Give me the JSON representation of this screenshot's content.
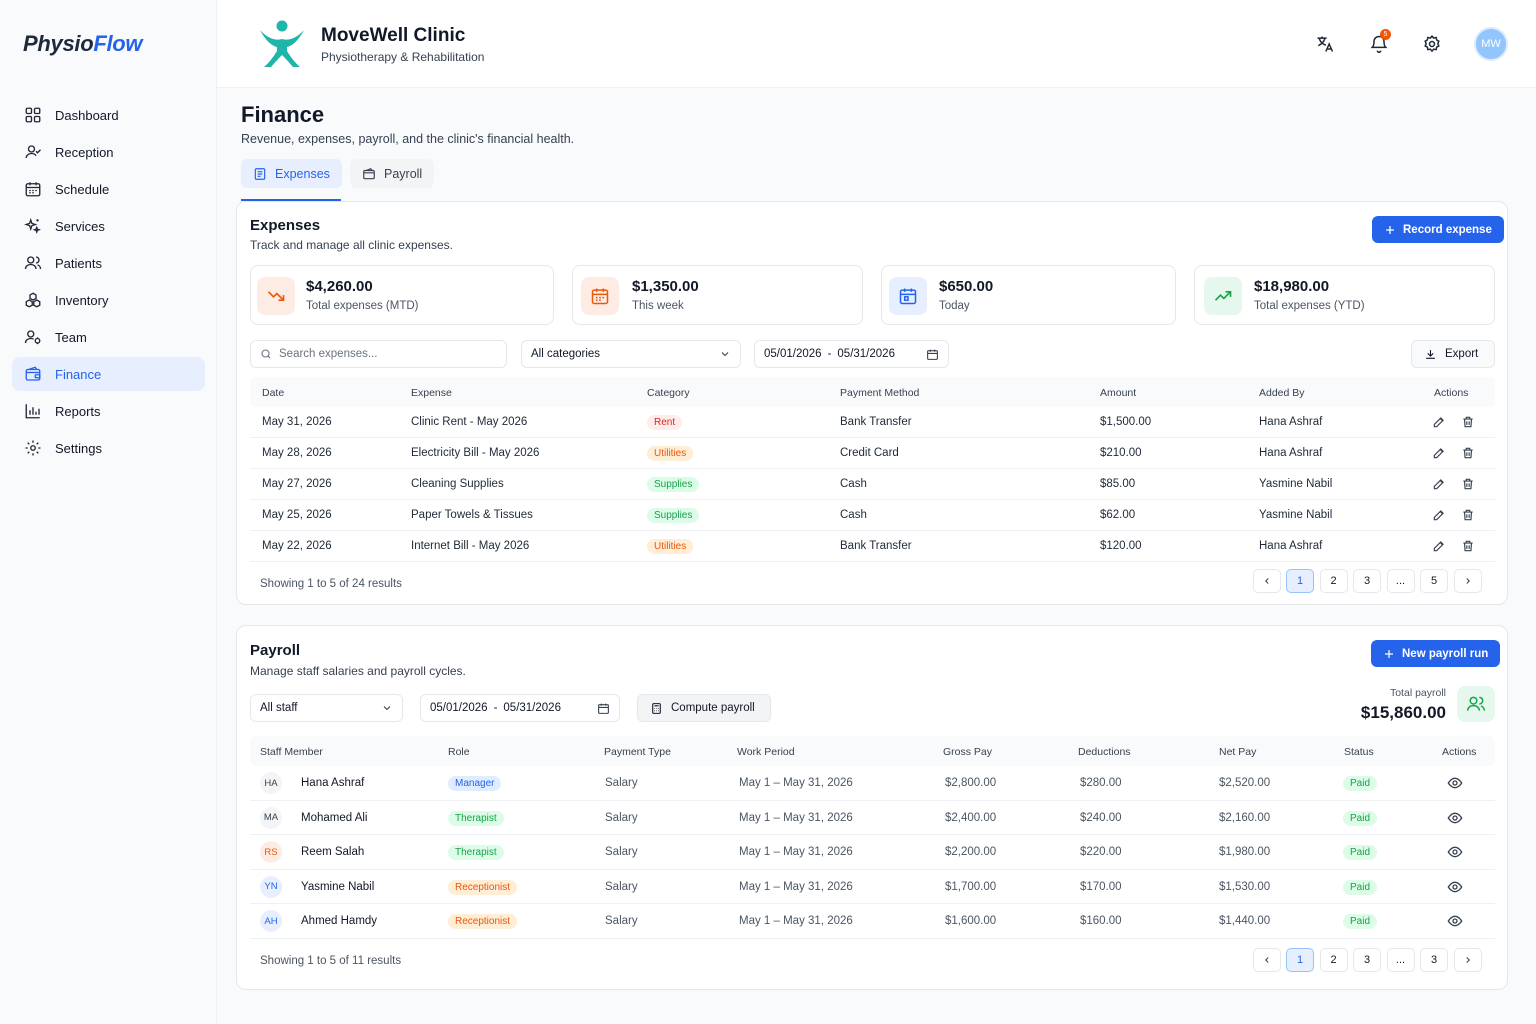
{
  "brand": {
    "part1": "Physio",
    "part2": "Flow"
  },
  "nav": [
    {
      "label": "Dashboard",
      "icon": "dashboard-icon"
    },
    {
      "label": "Reception",
      "icon": "reception-icon"
    },
    {
      "label": "Schedule",
      "icon": "calendar-icon"
    },
    {
      "label": "Services",
      "icon": "sparkles-icon"
    },
    {
      "label": "Patients",
      "icon": "users-icon"
    },
    {
      "label": "Inventory",
      "icon": "boxes-icon"
    },
    {
      "label": "Team",
      "icon": "team-icon"
    },
    {
      "label": "Finance",
      "icon": "wallet-icon",
      "active": true
    },
    {
      "label": "Reports",
      "icon": "bar-chart-icon"
    },
    {
      "label": "Settings",
      "icon": "gear-icon"
    }
  ],
  "header": {
    "clinic_name": "MoveWell Clinic",
    "clinic_sub": "Physiotherapy & Rehabilitation",
    "notifications": "5",
    "avatar": "MW"
  },
  "page": {
    "title": "Finance",
    "subtitle": "Revenue, expenses, payroll, and the clinic's financial health."
  },
  "tabs": [
    {
      "label": "Expenses",
      "active": true
    },
    {
      "label": "Payroll"
    }
  ],
  "expenses": {
    "title": "Expenses",
    "subtitle": "Track and manage all clinic expenses.",
    "record_button": "Record expense",
    "stats": [
      {
        "value": "$4,260.00",
        "label": "Total expenses (MTD)"
      },
      {
        "value": "$1,350.00",
        "label": "This week"
      },
      {
        "value": "$650.00",
        "label": "Today"
      },
      {
        "value": "$18,980.00",
        "label": "Total expenses (YTD)"
      }
    ],
    "search_placeholder": "Search expenses...",
    "category_filter": "All categories",
    "date_from": "05/01/2026",
    "date_sep": "-",
    "date_to": "05/31/2026",
    "export_button": "Export",
    "columns": [
      "Date",
      "Expense",
      "Category",
      "Payment Method",
      "Amount",
      "Added By",
      "Actions"
    ],
    "rows": [
      {
        "date": "May 31, 2026",
        "expense": "Clinic Rent - May 2026",
        "category": "Rent",
        "method": "Bank Transfer",
        "amount": "$1,500.00",
        "added_by": "Hana Ashraf"
      },
      {
        "date": "May 28, 2026",
        "expense": "Electricity Bill - May 2026",
        "category": "Utilities",
        "method": "Credit Card",
        "amount": "$210.00",
        "added_by": "Hana Ashraf"
      },
      {
        "date": "May 27, 2026",
        "expense": "Cleaning Supplies",
        "category": "Supplies",
        "method": "Cash",
        "amount": "$85.00",
        "added_by": "Yasmine Nabil"
      },
      {
        "date": "May 25, 2026",
        "expense": "Paper Towels & Tissues",
        "category": "Supplies",
        "method": "Cash",
        "amount": "$62.00",
        "added_by": "Yasmine Nabil"
      },
      {
        "date": "May 22, 2026",
        "expense": "Internet Bill - May 2026",
        "category": "Utilities",
        "method": "Bank Transfer",
        "amount": "$120.00",
        "added_by": "Hana Ashraf"
      }
    ],
    "showing": "Showing 1 to 5 of 24 results",
    "pages": [
      "1",
      "2",
      "3",
      "...",
      "5"
    ]
  },
  "payroll": {
    "title": "Payroll",
    "subtitle": "Manage staff salaries and payroll cycles.",
    "new_button": "New payroll run",
    "staff_filter": "All staff",
    "date_from": "05/01/2026",
    "date_sep": "-",
    "date_to": "05/31/2026",
    "compute_button": "Compute payroll",
    "total_label": "Total payroll",
    "total_value": "$15,860.00",
    "columns": [
      "Staff Member",
      "Role",
      "Payment Type",
      "Work Period",
      "Gross Pay",
      "Deductions",
      "Net Pay",
      "Status",
      "Actions"
    ],
    "rows": [
      {
        "initials": "HA",
        "name": "Hana Ashraf",
        "role": "Manager",
        "type": "Salary",
        "period": "May 1 – May 31, 2026",
        "gross": "$2,800.00",
        "deductions": "$280.00",
        "net": "$2,520.00",
        "status": "Paid"
      },
      {
        "initials": "MA",
        "name": "Mohamed Ali",
        "role": "Therapist",
        "type": "Salary",
        "period": "May 1 – May 31, 2026",
        "gross": "$2,400.00",
        "deductions": "$240.00",
        "net": "$2,160.00",
        "status": "Paid"
      },
      {
        "initials": "RS",
        "name": "Reem Salah",
        "role": "Therapist",
        "type": "Salary",
        "period": "May 1 – May 31, 2026",
        "gross": "$2,200.00",
        "deductions": "$220.00",
        "net": "$1,980.00",
        "status": "Paid"
      },
      {
        "initials": "YN",
        "name": "Yasmine Nabil",
        "role": "Receptionist",
        "type": "Salary",
        "period": "May 1 – May 31, 2026",
        "gross": "$1,700.00",
        "deductions": "$170.00",
        "net": "$1,530.00",
        "status": "Paid"
      },
      {
        "initials": "AH",
        "name": "Ahmed Hamdy",
        "role": "Receptionist",
        "type": "Salary",
        "period": "May 1 – May 31, 2026",
        "gross": "$1,600.00",
        "deductions": "$160.00",
        "net": "$1,440.00",
        "status": "Paid"
      }
    ],
    "showing": "Showing 1 to 5 of 11 results",
    "pages": [
      "1",
      "2",
      "3",
      "...",
      "3"
    ]
  },
  "colors": {
    "primary": "#2563eb",
    "active_bg": "#e7efff",
    "logo": "#1fb5a8",
    "danger": "#dc2626",
    "warning": "#ea580c",
    "success": "#16a34a"
  }
}
